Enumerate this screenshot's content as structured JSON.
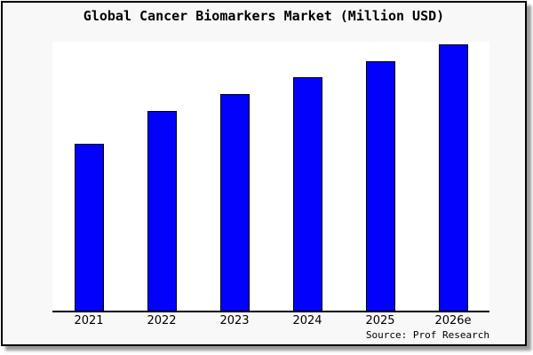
{
  "frame": {
    "page_background": "#ffffff",
    "card_background": "#f8f8f8",
    "border_color": "#000000",
    "shadow_color": "#9a9a9a"
  },
  "chart_data": {
    "type": "bar",
    "title": "Global Cancer Biomarkers Market (Million USD)",
    "categories": [
      "2021",
      "2022",
      "2023",
      "2024",
      "2025",
      "2026e"
    ],
    "values": [
      62.0,
      74.3,
      80.5,
      86.8,
      92.7,
      99.0
    ],
    "value_scale_note": "no y-axis or data labels shown; values estimated as percent of plot height, relative to chart max",
    "xlabel": "",
    "ylabel": "",
    "ylim": [
      0,
      100
    ],
    "grid": false,
    "legend": false,
    "bar_color": "#0202fc",
    "bar_edge_color": "#000000",
    "axis_color": "#000000",
    "plot_background": "#ffffff"
  },
  "source": {
    "label": "Source: Prof Research"
  }
}
